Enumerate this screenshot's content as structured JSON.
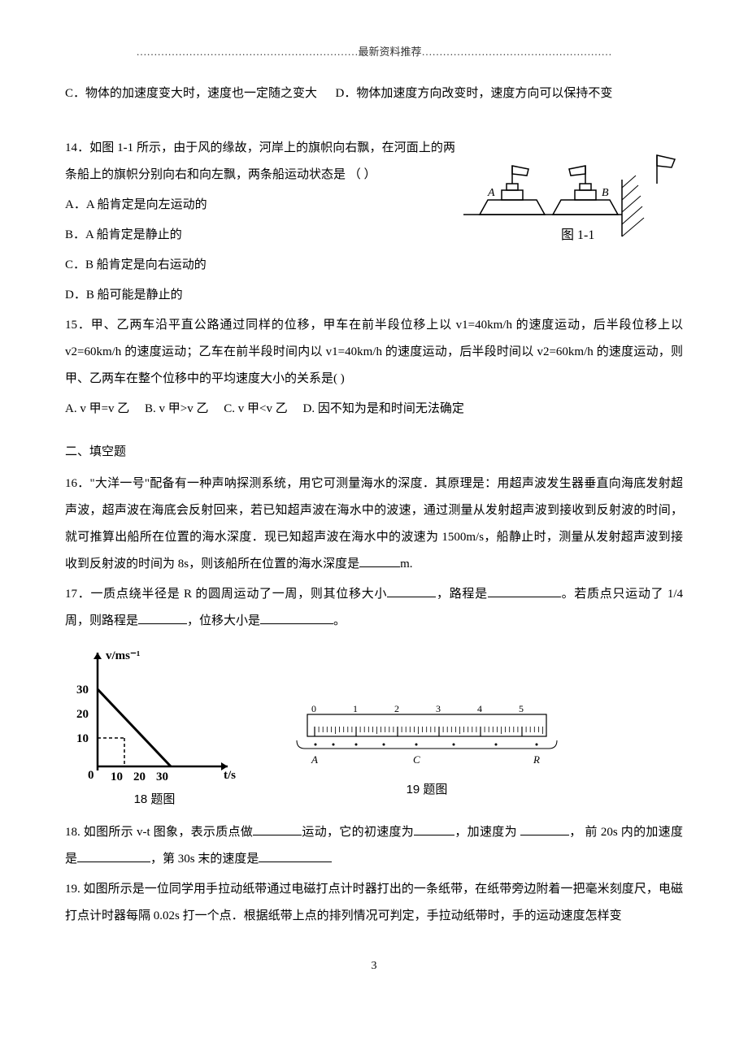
{
  "header": "………………………………………………………最新资料推荐………………………………………………",
  "q13": {
    "optC": "C．物体的加速度变大时，速度也一定随之变大",
    "optD": "D．物体加速度方向改变时，速度方向可以保持不变"
  },
  "q14": {
    "stem": "14．如图 1-1 所示，由于风的缘故，河岸上的旗帜向右飘，在河面上的两条船上的旗帜分别向右和向左飘，两条船运动状态是 （      ）",
    "optA": "A．A 船肯定是向左运动的",
    "optB": "B．A 船肯定是静止的",
    "optC": "C．B 船肯定是向右运动的",
    "optD": "D．B 船可能是静止的",
    "figLabel": "图 1-1",
    "boatA": "A",
    "boatB": "B"
  },
  "q15": {
    "stem": "15．甲、乙两车沿平直公路通过同样的位移，甲车在前半段位移上以 v1=40km/h 的速度运动，后半段位移上以 v2=60km/h 的速度运动；乙车在前半段时间内以 v1=40km/h 的速度运动，后半段时间以 v2=60km/h 的速度运动，则甲、乙两车在整个位移中的平均速度大小的关系是(     )",
    "optA": "A. v 甲=v 乙",
    "optB": "B. v 甲>v 乙",
    "optC": "C. v 甲<v 乙",
    "optD": "D. 因不知为是和时间无法确定"
  },
  "section2": "二、填空题",
  "q16": {
    "text1": "16．\"大洋一号\"配备有一种声呐探测系统，用它可测量海水的深度．其原理是：用超声波发生器垂直向海底发射超声波，超声波在海底会反射回来，若已知超声波在海水中的波速，通过测量从发射超声波到接收到反射波的时间，就可推算出船所在位置的海水深度．现已知超声波在海水中的波速为 1500m/s，船静止时，测量从发射超声波到接收到反射波的时间为 8s，则该船所在位置的海水深度是",
    "text2": "m."
  },
  "q17": {
    "t1": "17．一质点绕半径是 R 的圆周运动了一周，则其位移大小",
    "t2": "，路程是",
    "t3": "。若质点只运动了 1/4 周，则路程是",
    "t4": "，位移大小是",
    "t5": "。"
  },
  "fig18": {
    "caption": "18 题图",
    "ylabel": "v/ms⁻¹",
    "xlabel": "t/s",
    "yticks": [
      "10",
      "20",
      "30"
    ],
    "xticks": [
      "10",
      "20",
      "30"
    ],
    "xlim": [
      0,
      40
    ],
    "ylim": [
      0,
      35
    ],
    "line_color": "#000000",
    "axis_color": "#000000"
  },
  "fig19": {
    "caption": "19 题图",
    "top_labels": [
      "0",
      "1",
      "2",
      "3",
      "4",
      "5"
    ],
    "bot_labels": [
      "A",
      "C",
      "R"
    ]
  },
  "q18": {
    "t1": "18. 如图所示 v-t 图象，表示质点做",
    "t2": "运动，它的初速度为",
    "t3": "，加速度为 ",
    "t4": "， 前 20s 内的加速度是",
    "t5": "，第 30s 末的速度是"
  },
  "q19": {
    "text": "19. 如图所示是一位同学用手拉动纸带通过电磁打点计时器打出的一条纸带，在纸带旁边附着一把毫米刻度尺，电磁打点计时器每隔 0.02s 打一个点．根据纸带上点的排列情况可判定，手拉动纸带时，手的运动速度怎样变"
  },
  "pageNum": "3"
}
